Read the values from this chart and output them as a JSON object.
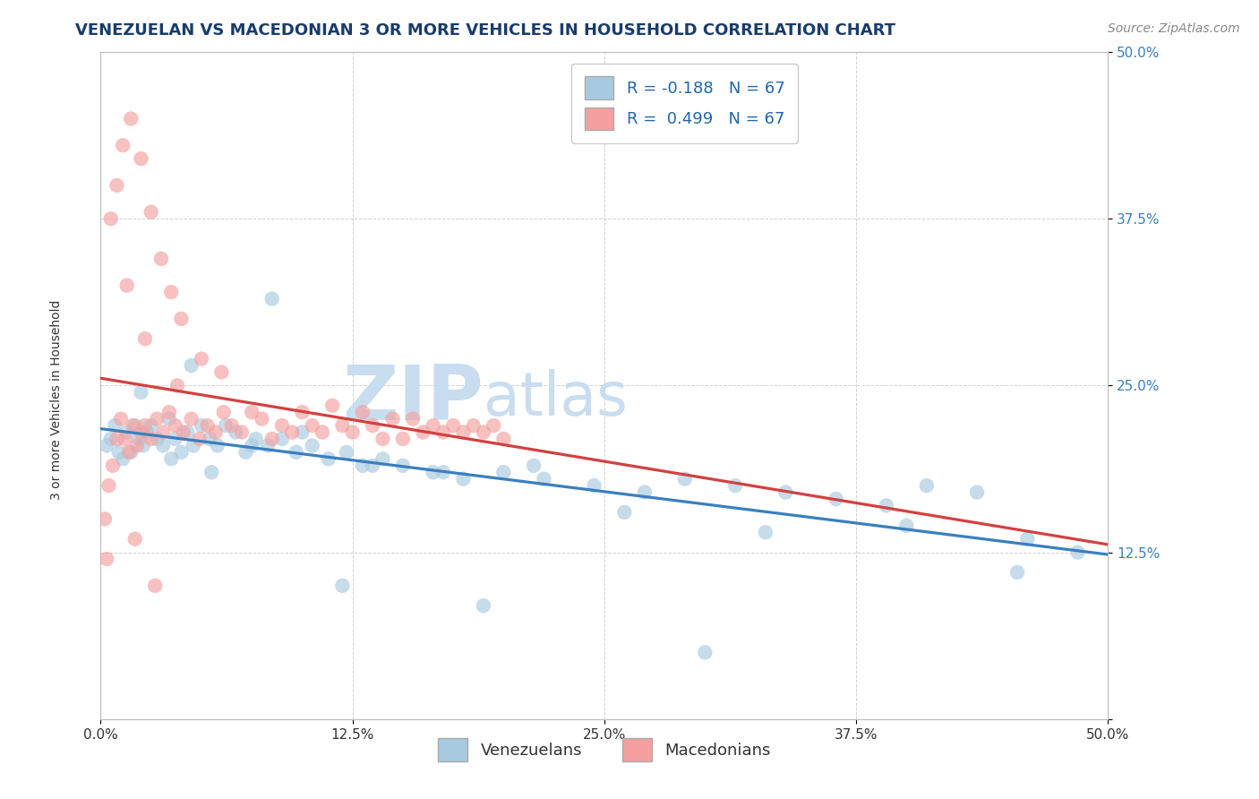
{
  "title": "VENEZUELAN VS MACEDONIAN 3 OR MORE VEHICLES IN HOUSEHOLD CORRELATION CHART",
  "source_text": "Source: ZipAtlas.com",
  "ylabel_left": "3 or more Vehicles in Household",
  "xmin": 0.0,
  "xmax": 50.0,
  "ymin": 0.0,
  "ymax": 50.0,
  "yticks": [
    0.0,
    12.5,
    25.0,
    37.5,
    50.0
  ],
  "xticks": [
    0.0,
    12.5,
    25.0,
    37.5,
    50.0
  ],
  "xtick_labels": [
    "0.0%",
    "12.5%",
    "25.0%",
    "37.5%",
    "50.0%"
  ],
  "ytick_labels_right": [
    "",
    "12.5%",
    "25.0%",
    "37.5%",
    "50.0%"
  ],
  "legend_blue_label": "R = -0.188   N = 67",
  "legend_pink_label": "R =  0.499   N = 67",
  "legend_bottom_blue": "Venezuelans",
  "legend_bottom_pink": "Macedonians",
  "blue_scatter_color": "#a8cadf",
  "pink_scatter_color": "#f4a0a0",
  "blue_line_color": "#3a7fbf",
  "pink_line_color": "#d44040",
  "watermark_zip": "ZIP",
  "watermark_atlas": "atlas",
  "watermark_color": "#c8ddf0",
  "title_fontsize": 13,
  "axis_label_fontsize": 10,
  "tick_fontsize": 11,
  "legend_fontsize": 13,
  "source_fontsize": 10,
  "blue_scatter_x": [
    0.3,
    0.5,
    0.7,
    0.9,
    1.1,
    1.3,
    1.5,
    1.7,
    1.9,
    2.1,
    2.3,
    2.5,
    2.8,
    3.1,
    3.4,
    3.7,
    4.0,
    4.3,
    4.6,
    5.0,
    5.4,
    5.8,
    6.2,
    6.7,
    7.2,
    7.7,
    8.3,
    9.0,
    9.7,
    10.5,
    11.3,
    12.2,
    13.0,
    14.0,
    15.0,
    16.5,
    18.0,
    20.0,
    22.0,
    24.5,
    27.0,
    29.0,
    31.5,
    34.0,
    36.5,
    39.0,
    41.0,
    43.5,
    46.0,
    48.5,
    3.5,
    5.5,
    7.5,
    10.0,
    13.5,
    17.0,
    21.5,
    26.0,
    33.0,
    40.0,
    45.5,
    2.0,
    4.5,
    8.5,
    12.0,
    19.0,
    30.0
  ],
  "blue_scatter_y": [
    20.5,
    21.0,
    22.0,
    20.0,
    19.5,
    21.5,
    20.0,
    22.0,
    21.0,
    20.5,
    21.5,
    22.0,
    21.0,
    20.5,
    22.5,
    21.0,
    20.0,
    21.5,
    20.5,
    22.0,
    21.0,
    20.5,
    22.0,
    21.5,
    20.0,
    21.0,
    20.5,
    21.0,
    20.0,
    20.5,
    19.5,
    20.0,
    19.0,
    19.5,
    19.0,
    18.5,
    18.0,
    18.5,
    18.0,
    17.5,
    17.0,
    18.0,
    17.5,
    17.0,
    16.5,
    16.0,
    17.5,
    17.0,
    13.5,
    12.5,
    19.5,
    18.5,
    20.5,
    21.5,
    19.0,
    18.5,
    19.0,
    15.5,
    14.0,
    14.5,
    11.0,
    24.5,
    26.5,
    31.5,
    10.0,
    8.5,
    5.0
  ],
  "pink_scatter_x": [
    0.2,
    0.4,
    0.6,
    0.8,
    1.0,
    1.2,
    1.4,
    1.6,
    1.8,
    2.0,
    2.2,
    2.5,
    2.8,
    3.1,
    3.4,
    3.7,
    4.1,
    4.5,
    4.9,
    5.3,
    5.7,
    6.1,
    6.5,
    7.0,
    7.5,
    8.0,
    8.5,
    9.0,
    9.5,
    10.0,
    10.5,
    11.0,
    11.5,
    12.0,
    12.5,
    13.0,
    13.5,
    14.0,
    14.5,
    15.0,
    15.5,
    16.0,
    16.5,
    17.0,
    17.5,
    18.0,
    18.5,
    19.0,
    19.5,
    20.0,
    0.5,
    0.8,
    1.1,
    1.5,
    2.0,
    2.5,
    3.0,
    3.5,
    4.0,
    5.0,
    6.0,
    1.3,
    2.2,
    3.8,
    0.3,
    1.7,
    2.7
  ],
  "pink_scatter_y": [
    15.0,
    17.5,
    19.0,
    21.0,
    22.5,
    21.0,
    20.0,
    22.0,
    20.5,
    21.5,
    22.0,
    21.0,
    22.5,
    21.5,
    23.0,
    22.0,
    21.5,
    22.5,
    21.0,
    22.0,
    21.5,
    23.0,
    22.0,
    21.5,
    23.0,
    22.5,
    21.0,
    22.0,
    21.5,
    23.0,
    22.0,
    21.5,
    23.5,
    22.0,
    21.5,
    23.0,
    22.0,
    21.0,
    22.5,
    21.0,
    22.5,
    21.5,
    22.0,
    21.5,
    22.0,
    21.5,
    22.0,
    21.5,
    22.0,
    21.0,
    37.5,
    40.0,
    43.0,
    45.0,
    42.0,
    38.0,
    34.5,
    32.0,
    30.0,
    27.0,
    26.0,
    32.5,
    28.5,
    25.0,
    12.0,
    13.5,
    10.0
  ]
}
